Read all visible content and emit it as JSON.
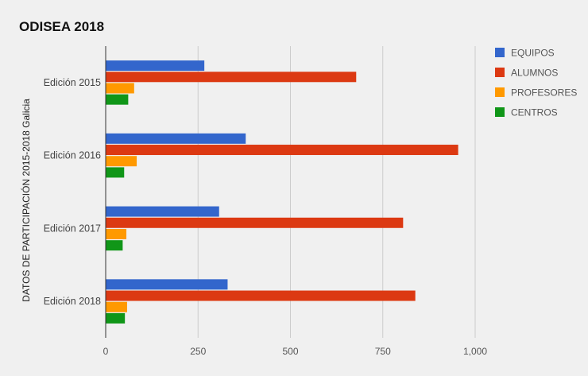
{
  "chart_data": {
    "type": "bar",
    "orientation": "horizontal",
    "title": "ODISEA 2018",
    "ylabel": "DATOS DE PARTICIPACIÓN 2015-2018 Galicia",
    "xlabel": "",
    "categories": [
      "Edición 2015",
      "Edición 2016",
      "Edición 2017",
      "Edición 2018"
    ],
    "series": [
      {
        "name": "EQUIPOS",
        "color": "#3366cc",
        "values": [
          267,
          379,
          307,
          330
        ]
      },
      {
        "name": "ALUMNOS",
        "color": "#dc3912",
        "values": [
          678,
          954,
          805,
          838
        ]
      },
      {
        "name": "PROFESORES",
        "color": "#ff9900",
        "values": [
          77,
          84,
          56,
          58
        ]
      },
      {
        "name": "CENTROS",
        "color": "#109618",
        "values": [
          61,
          50,
          46,
          52
        ]
      }
    ],
    "xlim": [
      0,
      1000
    ],
    "xticks": [
      0,
      250,
      500,
      750,
      1000
    ],
    "xtick_labels": [
      "0",
      "250",
      "500",
      "750",
      "1,000"
    ],
    "grid": true,
    "legend_position": "right"
  }
}
